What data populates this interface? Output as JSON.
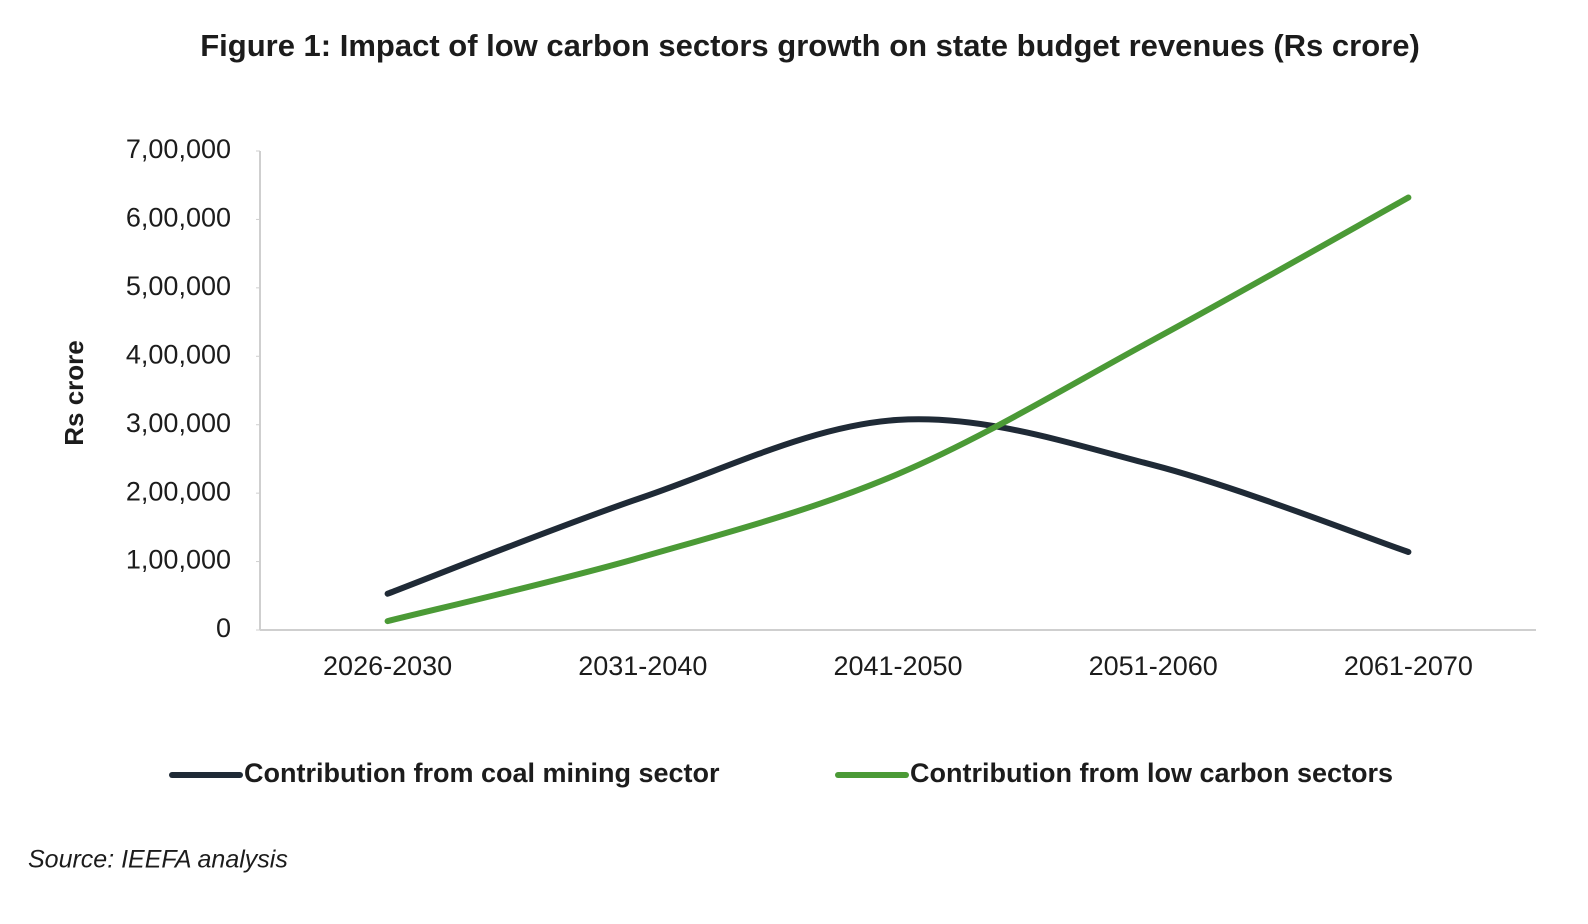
{
  "chart_data": {
    "type": "line",
    "title": "Figure 1: Impact of low carbon sectors growth on state budget revenues (Rs crore)",
    "y_label": "Rs crore",
    "categories": [
      "2026-2030",
      "2031-2040",
      "2041-2050",
      "2051-2060",
      "2061-2070"
    ],
    "series": [
      {
        "name": "Contribution from coal mining sector",
        "color": "#1f2a36",
        "values": [
          53000,
          194000,
          307000,
          241000,
          114000
        ]
      },
      {
        "name": "Contribution from low carbon sectors",
        "color": "#4b9a36",
        "values": [
          13000,
          107000,
          228000,
          424000,
          632000
        ]
      }
    ],
    "ylim": [
      0,
      700000
    ],
    "yticks": [
      0,
      {
        "value": 100000,
        "label": "1,00,000"
      },
      {
        "value": 200000,
        "label": "2,00,000"
      },
      {
        "value": 300000,
        "label": "3,00,000"
      },
      {
        "value": 400000,
        "label": "4,00,000"
      },
      {
        "value": 500000,
        "label": "5,00,000"
      },
      {
        "value": 600000,
        "label": "6,00,000"
      },
      {
        "value": 700000,
        "label": "7,00,000"
      }
    ],
    "smooth": true,
    "grid": false,
    "legend": "bottom",
    "source": "Source: IEEFA analysis"
  }
}
